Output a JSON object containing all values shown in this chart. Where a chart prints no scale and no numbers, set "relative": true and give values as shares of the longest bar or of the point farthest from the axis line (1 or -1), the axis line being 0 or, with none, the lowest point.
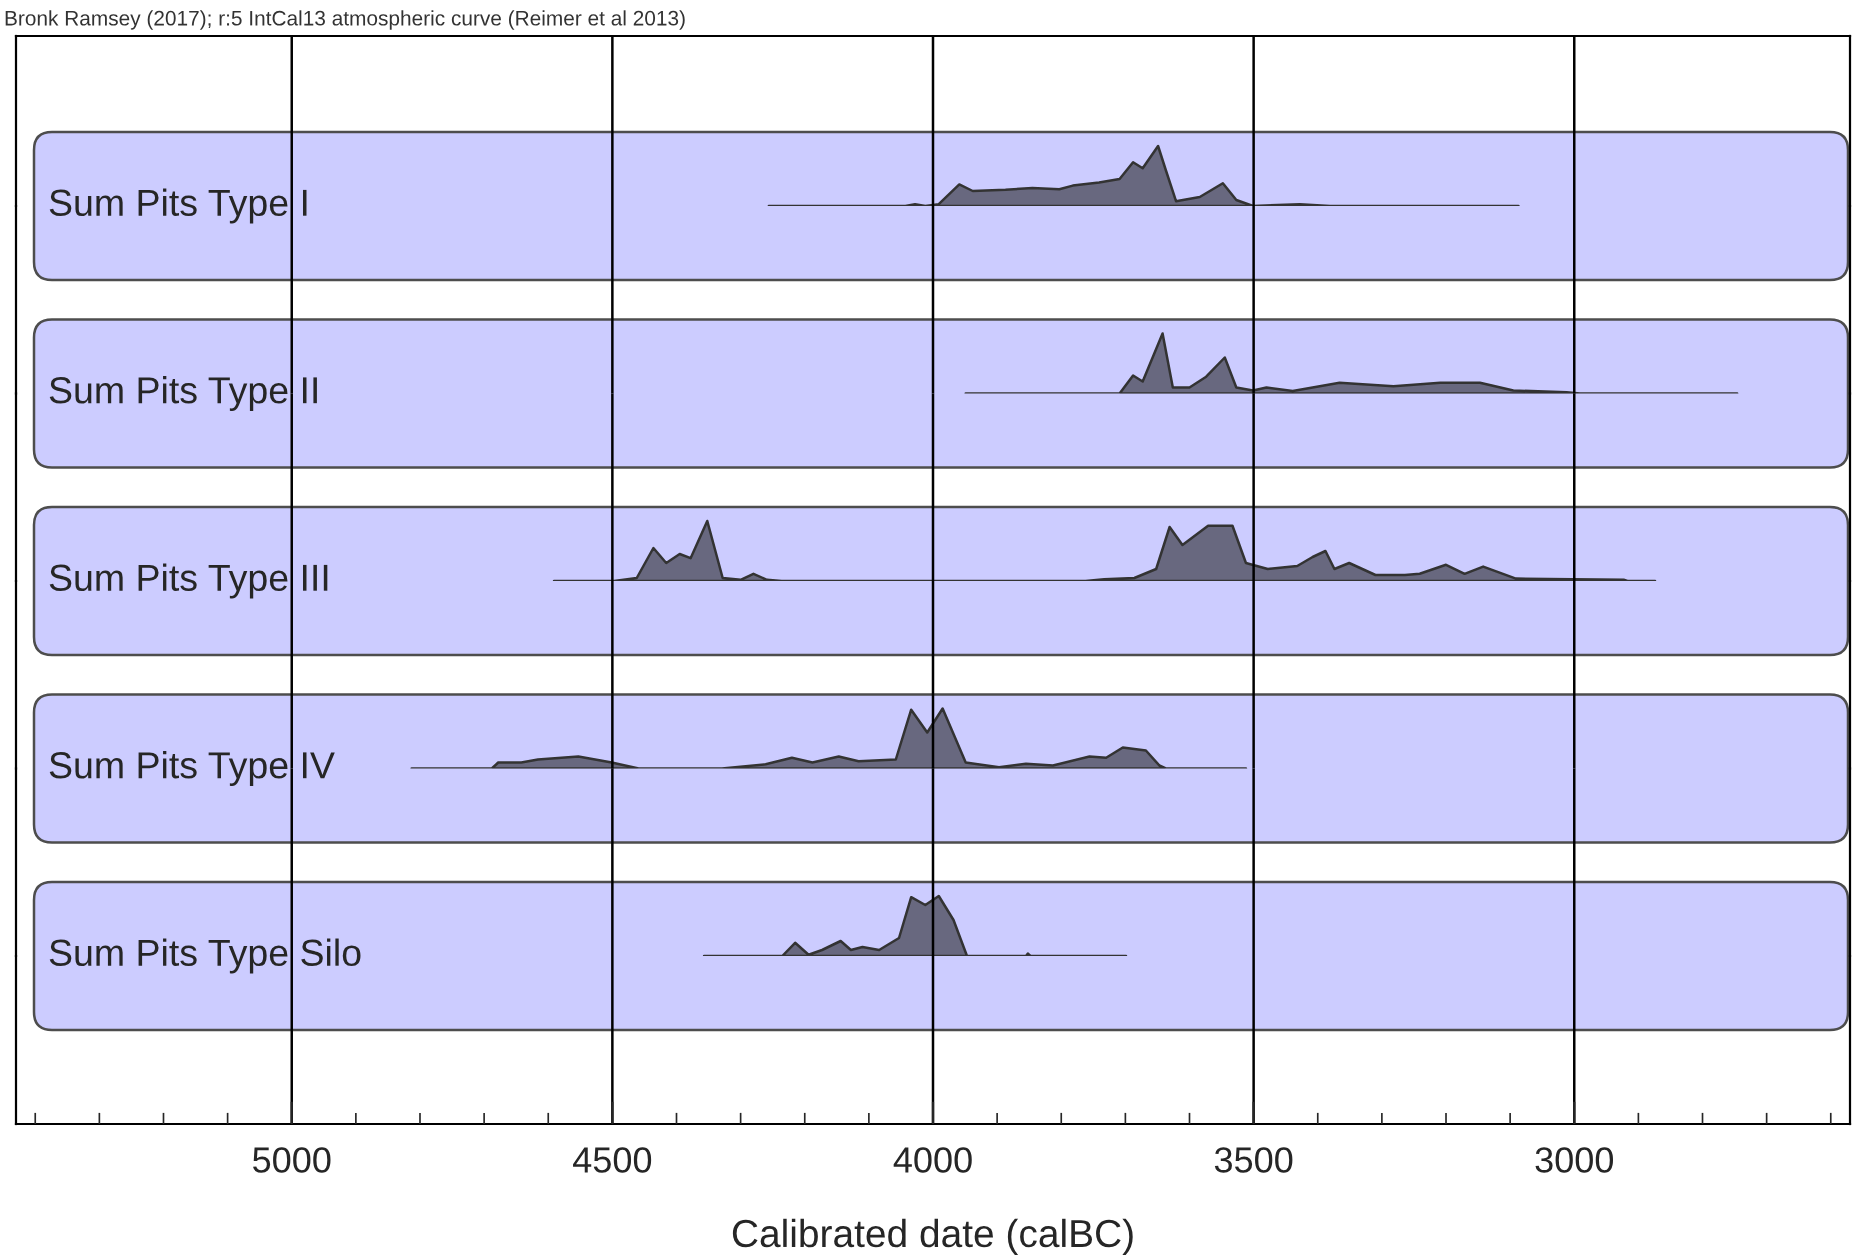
{
  "chart_data": [
    {
      "type": "area",
      "title": "Sum Pits Type I",
      "relative": true,
      "color": "#68687f",
      "xlim": [
        5430,
        2570
      ],
      "xticks": [
        5000,
        4500,
        4000,
        3500,
        3000
      ],
      "grid": "x",
      "tick_labels": false,
      "annotations": [
        "Bronk Ramsey (2017); r:5 IntCal13 atmospheric curve (Reimer et al 2013)"
      ],
      "x": [
        4256,
        4043,
        4028,
        4012,
        3991,
        3959,
        3938,
        3887,
        3845,
        3803,
        3782,
        3741,
        3709,
        3688,
        3673,
        3649,
        3637,
        3621,
        3584,
        3548,
        3527,
        3501,
        3428,
        3381,
        3087
      ],
      "values": [
        0,
        0,
        0.03,
        0,
        0.03,
        0.36,
        0.25,
        0.27,
        0.3,
        0.28,
        0.34,
        0.39,
        0.45,
        0.73,
        0.63,
        1.0,
        0.6,
        0.08,
        0.15,
        0.38,
        0.1,
        0,
        0.03,
        0,
        0
      ]
    },
    {
      "type": "area",
      "title": "Sum Pits Type II",
      "relative": true,
      "color": "#68687f",
      "xlim": [
        5430,
        2570
      ],
      "xticks": [
        5000,
        4500,
        4000,
        3500,
        3000
      ],
      "grid": "x",
      "tick_labels": false,
      "x": [
        3949,
        3709,
        3688,
        3673,
        3642,
        3626,
        3600,
        3574,
        3545,
        3527,
        3501,
        3480,
        3439,
        3366,
        3282,
        3209,
        3147,
        3095,
        3012,
        2991,
        2746
      ],
      "values": [
        0,
        0,
        0.3,
        0.2,
        1.0,
        0.1,
        0.1,
        0.28,
        0.6,
        0.1,
        0.05,
        0.1,
        0.04,
        0.18,
        0.12,
        0.18,
        0.18,
        0.05,
        0.02,
        0,
        0
      ]
    },
    {
      "type": "area",
      "title": "Sum Pits Type III",
      "relative": true,
      "color": "#68687f",
      "xlim": [
        5430,
        2570
      ],
      "xticks": [
        5000,
        4500,
        4000,
        3500,
        3000
      ],
      "grid": "x",
      "tick_labels": false,
      "x": [
        4591,
        4497,
        4462,
        4436,
        4416,
        4395,
        4378,
        4352,
        4328,
        4300,
        4280,
        4259,
        4236,
        3762,
        3733,
        3686,
        3652,
        3631,
        3611,
        3571,
        3533,
        3512,
        3478,
        3432,
        3408,
        3388,
        3374,
        3351,
        3310,
        3264,
        3241,
        3200,
        3171,
        3142,
        3091,
        3003,
        2922,
        2917,
        2874
      ],
      "values": [
        0,
        0,
        0.05,
        0.55,
        0.3,
        0.45,
        0.38,
        1.0,
        0.05,
        0.02,
        0.12,
        0.02,
        0,
        0,
        0.03,
        0.05,
        0.2,
        0.9,
        0.6,
        0.92,
        0.92,
        0.3,
        0.2,
        0.25,
        0.4,
        0.5,
        0.2,
        0.3,
        0.1,
        0.1,
        0.12,
        0.27,
        0.12,
        0.24,
        0.04,
        0.03,
        0.02,
        0,
        0
      ]
    },
    {
      "type": "area",
      "title": "Sum Pits Type IV",
      "relative": true,
      "color": "#68687f",
      "xlim": [
        5430,
        2570
      ],
      "xticks": [
        5000,
        4500,
        4000,
        3500,
        3000
      ],
      "grid": "x",
      "tick_labels": false,
      "x": [
        4813,
        4688,
        4678,
        4642,
        4616,
        4553,
        4501,
        4459,
        4329,
        4261,
        4220,
        4188,
        4147,
        4116,
        4058,
        4034,
        4009,
        3985,
        3949,
        3897,
        3855,
        3813,
        3756,
        3730,
        3704,
        3668,
        3647,
        3637,
        3512
      ],
      "values": [
        0,
        0,
        0.1,
        0.1,
        0.15,
        0.2,
        0.1,
        0,
        0,
        0.07,
        0.18,
        0.1,
        0.2,
        0.12,
        0.15,
        0.98,
        0.6,
        1.0,
        0.1,
        0.02,
        0.08,
        0.05,
        0.2,
        0.18,
        0.35,
        0.3,
        0.05,
        0,
        0
      ]
    },
    {
      "type": "area",
      "title": "Sum Pits Type Silo",
      "relative": true,
      "color": "#68687f",
      "xlim": [
        5430,
        2570
      ],
      "xticks": [
        5000,
        4500,
        4000,
        3500,
        3000
      ],
      "grid": "x",
      "xlabel": "Calibrated date (calBC)",
      "x": [
        4357,
        4235,
        4215,
        4194,
        4173,
        4144,
        4128,
        4110,
        4084,
        4053,
        4034,
        4012,
        3991,
        3968,
        3947,
        3855,
        3852,
        3848,
        3699
      ],
      "values": [
        0,
        0,
        0.22,
        0.02,
        0.1,
        0.25,
        0.1,
        0.15,
        0.1,
        0.3,
        0.98,
        0.85,
        1.0,
        0.6,
        0,
        0,
        0.04,
        0,
        0
      ]
    }
  ]
}
